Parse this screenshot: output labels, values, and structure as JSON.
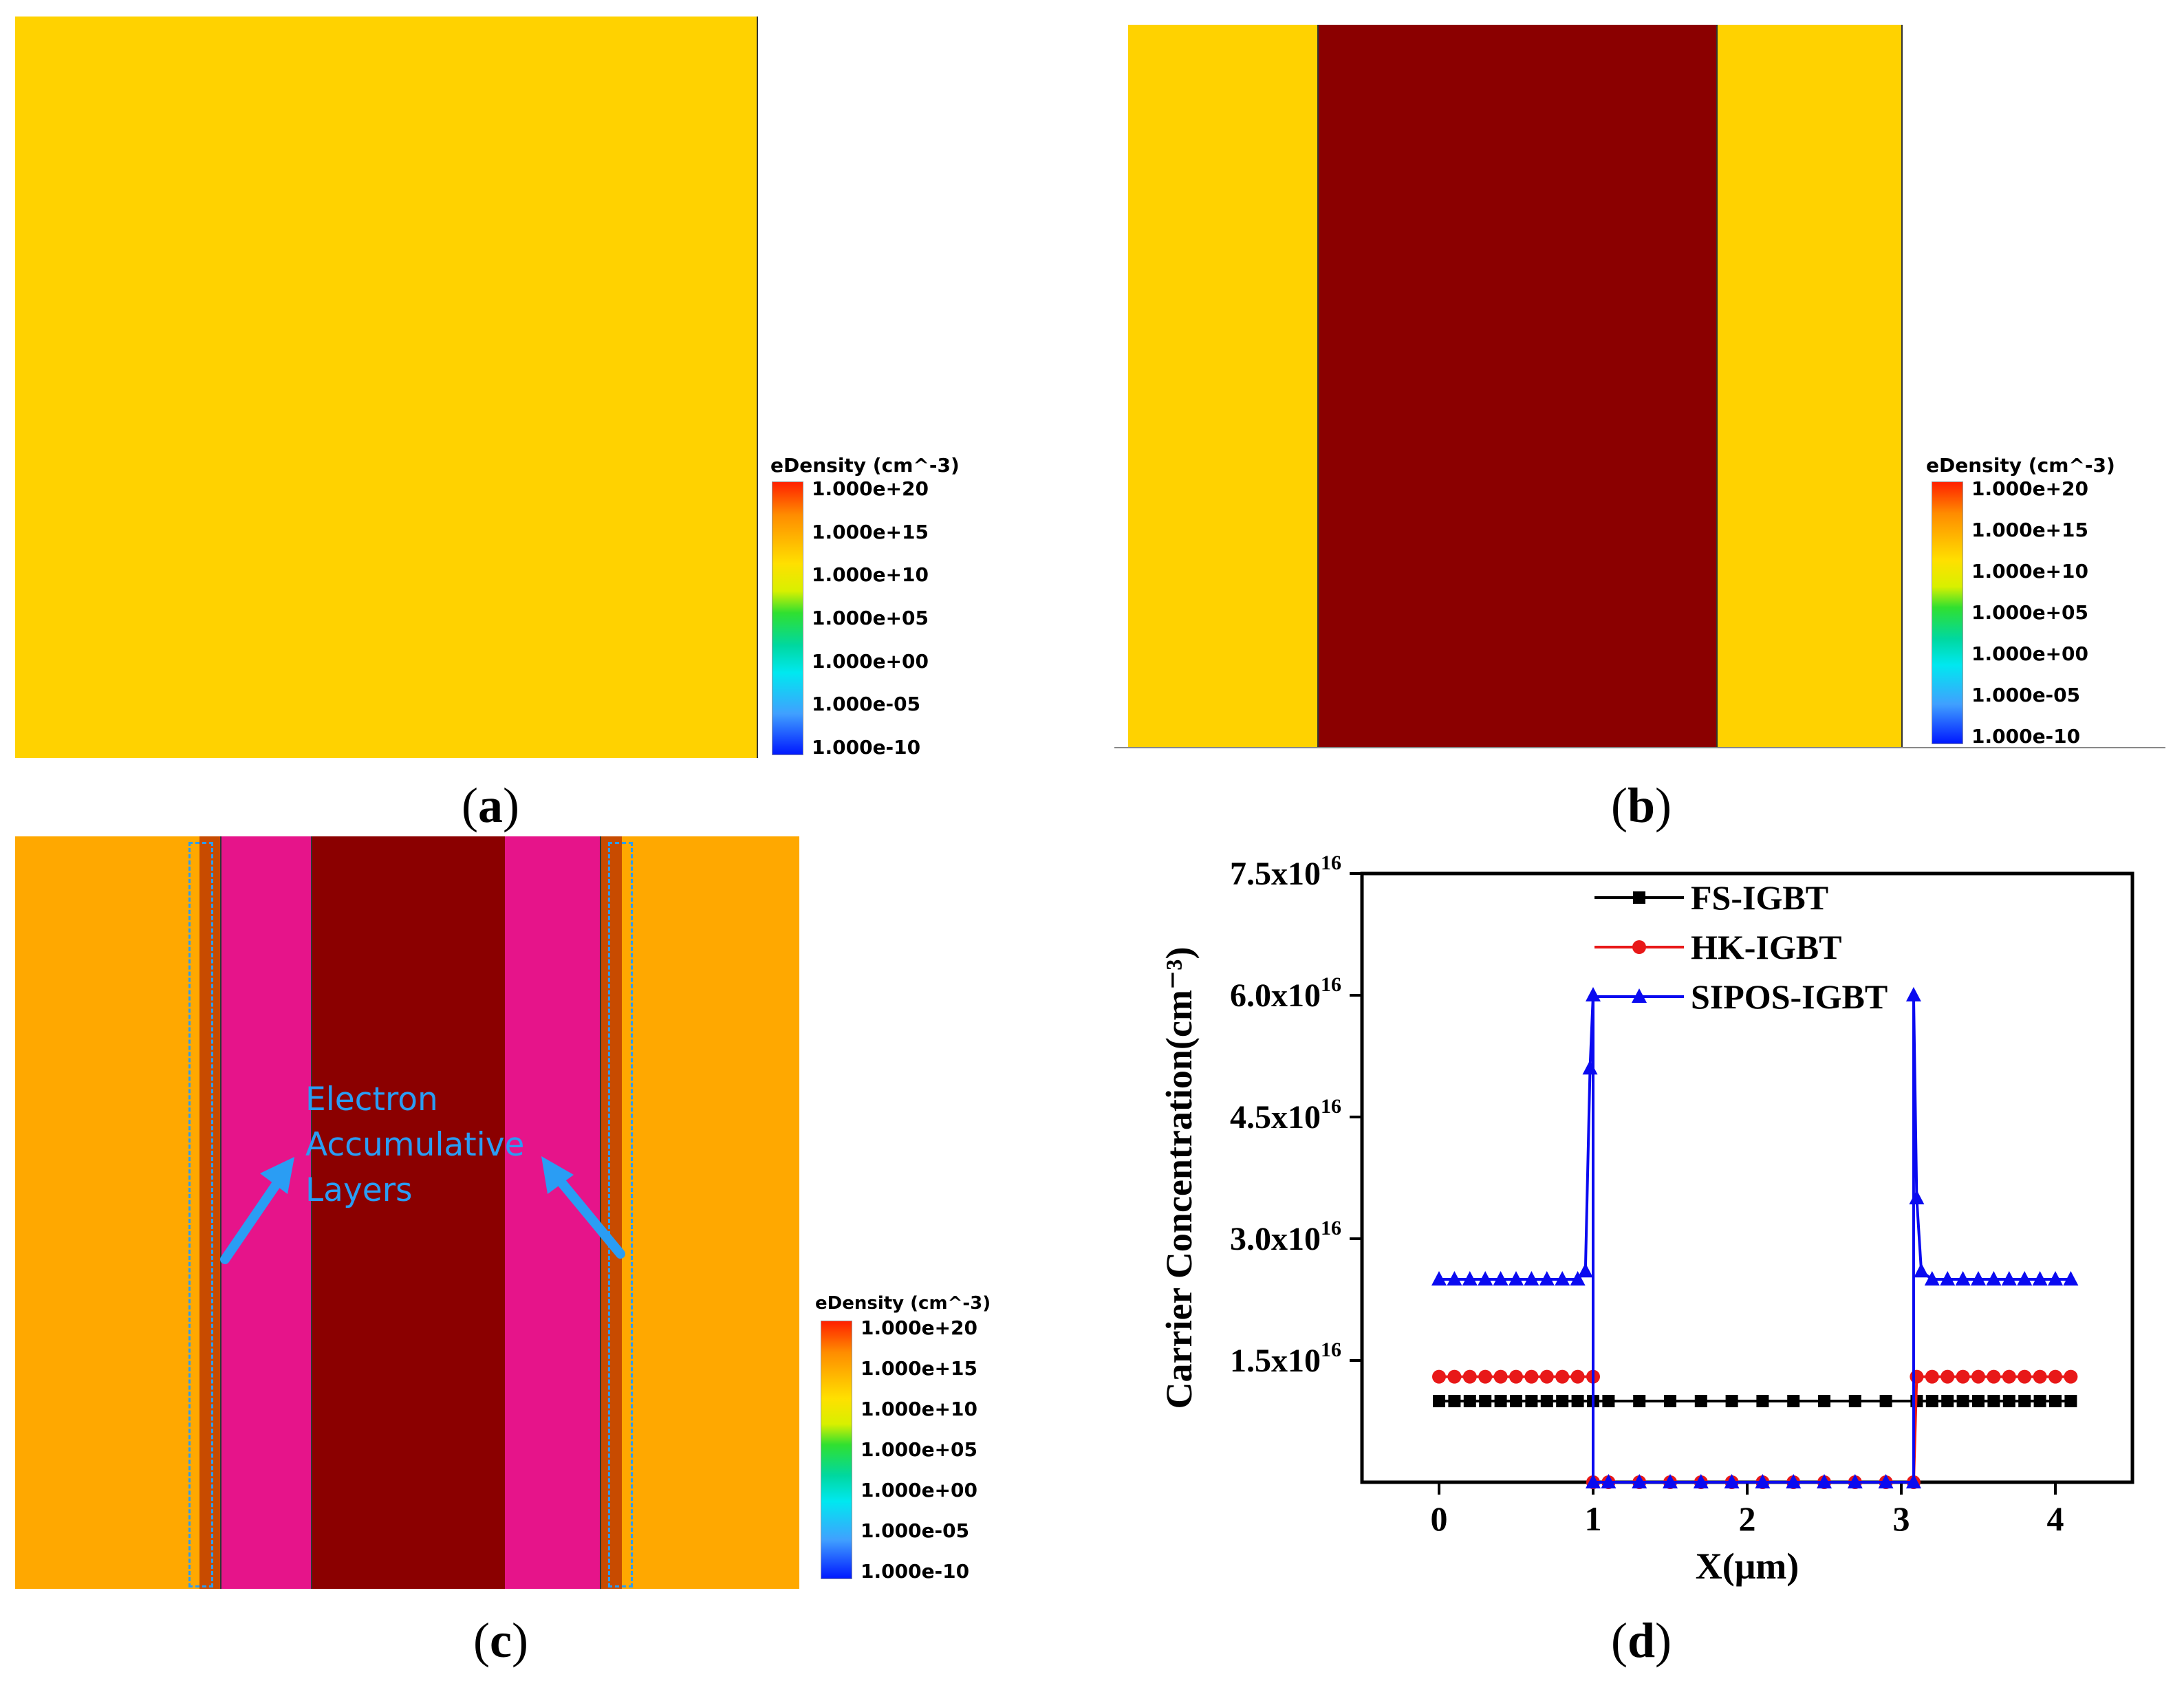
{
  "colors": {
    "yellow": "#FFD200",
    "dark_red": "#8B0000",
    "orange": "#FFA800",
    "magenta": "#E6148A",
    "annotation": "#2A9DF4",
    "fs": "#000000",
    "hk": "#E81818",
    "sipos": "#0A0AF0"
  },
  "captions": {
    "a": [
      "(",
      "a",
      ")"
    ],
    "b": [
      "(",
      "b",
      ")"
    ],
    "c": [
      "(",
      "c",
      ")"
    ],
    "d": [
      "(",
      "d",
      ")"
    ]
  },
  "colorbar": {
    "title": "eDensity (cm^-3)",
    "ticks": [
      "1.000e+20",
      "1.000e+15",
      "1.000e+10",
      "1.000e+05",
      "1.000e+00",
      "1.000e-05",
      "1.000e-10"
    ]
  },
  "annotation_c": {
    "lines": [
      "Electron",
      "Accumulative",
      "Layers"
    ]
  },
  "chart_data": {
    "type": "line",
    "title": "",
    "xlabel": "X(μm)",
    "ylabel": "Carrier Concentration(cm⁻³)",
    "xlim": [
      -0.5,
      4.5
    ],
    "ylim": [
      0,
      7.5e+16
    ],
    "xticks": [
      0,
      1,
      2,
      3,
      4
    ],
    "xtick_labels": [
      "0",
      "1",
      "2",
      "3",
      "4"
    ],
    "yticks": [
      1.5e+16,
      3e+16,
      4.5e+16,
      6e+16,
      7.5e+16
    ],
    "ytick_labels": [
      {
        "mant": "1.5x10",
        "exp": "16"
      },
      {
        "mant": "3.0x10",
        "exp": "16"
      },
      {
        "mant": "4.5x10",
        "exp": "16"
      },
      {
        "mant": "6.0x10",
        "exp": "16"
      },
      {
        "mant": "7.5x10",
        "exp": "16"
      }
    ],
    "legend_position": "top",
    "series": [
      {
        "name": "FS-IGBT",
        "marker": "square",
        "color": "#000000",
        "x": [
          0,
          0.1,
          0.2,
          0.3,
          0.4,
          0.5,
          0.6,
          0.7,
          0.8,
          0.9,
          1.0,
          1.1,
          1.3,
          1.5,
          1.7,
          1.9,
          2.1,
          2.3,
          2.5,
          2.7,
          2.9,
          3.1,
          3.2,
          3.3,
          3.4,
          3.5,
          3.6,
          3.7,
          3.8,
          3.9,
          4.0,
          4.1
        ],
        "y": [
          1e+16,
          1e+16,
          1e+16,
          1e+16,
          1e+16,
          1e+16,
          1e+16,
          1e+16,
          1e+16,
          1e+16,
          1e+16,
          1e+16,
          1e+16,
          1e+16,
          1e+16,
          1e+16,
          1e+16,
          1e+16,
          1e+16,
          1e+16,
          1e+16,
          1e+16,
          1e+16,
          1e+16,
          1e+16,
          1e+16,
          1e+16,
          1e+16,
          1e+16,
          1e+16,
          1e+16,
          1e+16
        ]
      },
      {
        "name": "HK-IGBT",
        "marker": "circle",
        "color": "#E81818",
        "x": [
          0,
          0.1,
          0.2,
          0.3,
          0.4,
          0.5,
          0.6,
          0.7,
          0.8,
          0.9,
          1.0,
          1.0,
          1.1,
          1.3,
          1.5,
          1.7,
          1.9,
          2.1,
          2.3,
          2.5,
          2.7,
          2.9,
          3.08,
          3.1,
          3.2,
          3.3,
          3.4,
          3.5,
          3.6,
          3.7,
          3.8,
          3.9,
          4.0,
          4.1
        ],
        "y": [
          1.3e+16,
          1.3e+16,
          1.3e+16,
          1.3e+16,
          1.3e+16,
          1.3e+16,
          1.3e+16,
          1.3e+16,
          1.3e+16,
          1.3e+16,
          1.3e+16,
          0,
          0,
          0,
          0,
          0,
          0,
          0,
          0,
          0,
          0,
          0,
          0,
          1.3e+16,
          1.3e+16,
          1.3e+16,
          1.3e+16,
          1.3e+16,
          1.3e+16,
          1.3e+16,
          1.3e+16,
          1.3e+16,
          1.3e+16,
          1.3e+16
        ]
      },
      {
        "name": "SIPOS-IGBT",
        "marker": "triangle",
        "color": "#0A0AF0",
        "x": [
          0,
          0.1,
          0.2,
          0.3,
          0.4,
          0.5,
          0.6,
          0.7,
          0.8,
          0.9,
          0.95,
          0.98,
          1.0,
          1.0,
          1.1,
          1.3,
          1.5,
          1.7,
          1.9,
          2.1,
          2.3,
          2.5,
          2.7,
          2.9,
          3.08,
          3.08,
          3.1,
          3.13,
          3.2,
          3.3,
          3.4,
          3.5,
          3.6,
          3.7,
          3.8,
          3.9,
          4.0,
          4.1
        ],
        "y": [
          2.5e+16,
          2.5e+16,
          2.5e+16,
          2.5e+16,
          2.5e+16,
          2.5e+16,
          2.5e+16,
          2.5e+16,
          2.5e+16,
          2.5e+16,
          2.6e+16,
          5.1e+16,
          6e+16,
          0,
          0,
          0,
          0,
          0,
          0,
          0,
          0,
          0,
          0,
          0,
          0,
          6e+16,
          3.5e+16,
          2.6e+16,
          2.5e+16,
          2.5e+16,
          2.5e+16,
          2.5e+16,
          2.5e+16,
          2.5e+16,
          2.5e+16,
          2.5e+16,
          2.5e+16,
          2.5e+16
        ]
      }
    ]
  }
}
